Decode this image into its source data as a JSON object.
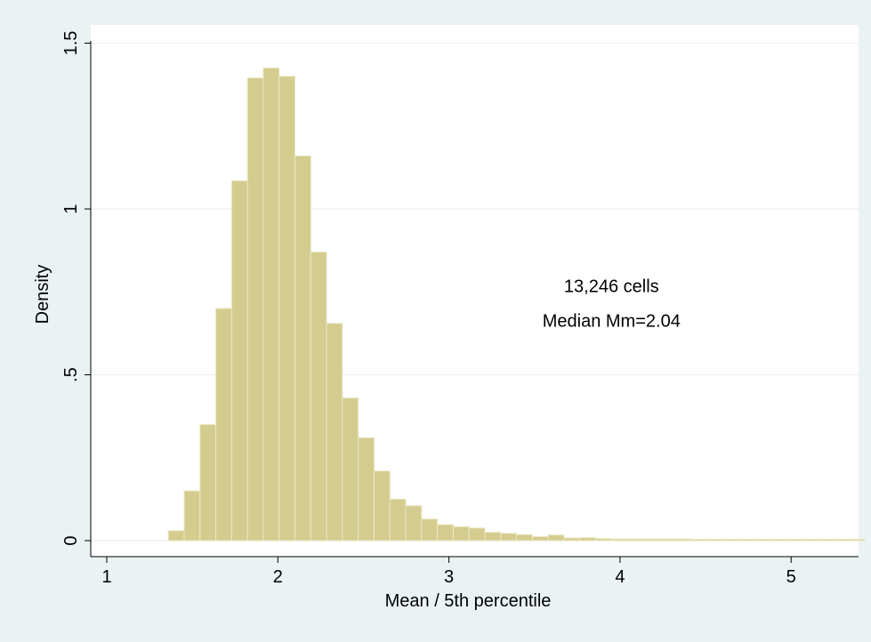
{
  "chart_data": {
    "type": "bar",
    "subtype": "histogram",
    "xlabel": "Mean / 5th percentile",
    "ylabel": "Density",
    "xlim": [
      0.95,
      5.3
    ],
    "ylim": [
      0,
      1.5
    ],
    "xticks": [
      {
        "value": 1,
        "label": "1"
      },
      {
        "value": 2,
        "label": "2"
      },
      {
        "value": 3,
        "label": "3"
      },
      {
        "value": 4,
        "label": "4"
      },
      {
        "value": 5,
        "label": "5"
      }
    ],
    "yticks": [
      {
        "value": 0,
        "label": "0"
      },
      {
        "value": 0.5,
        "label": ".5"
      },
      {
        "value": 1,
        "label": "1"
      },
      {
        "value": 1.5,
        "label": "1.5"
      }
    ],
    "grid": {
      "horizontal": true,
      "vertical": false
    },
    "bin_width": 0.0925,
    "bins_start": 1.36,
    "bin_values": [
      0.03,
      0.15,
      0.35,
      0.7,
      1.085,
      1.395,
      1.425,
      1.4,
      1.16,
      0.87,
      0.655,
      0.43,
      0.31,
      0.21,
      0.125,
      0.105,
      0.065,
      0.048,
      0.042,
      0.038,
      0.025,
      0.022,
      0.018,
      0.012,
      0.017,
      0.008,
      0.009,
      0.006,
      0.005,
      0.005,
      0.005,
      0.005,
      0.005,
      0.004,
      0.004,
      0.004,
      0.004,
      0.004,
      0.004,
      0.004,
      0.004,
      0.004,
      0.004,
      0.004
    ],
    "annotations": [
      {
        "text": "13,246 cells",
        "x": 3.95,
        "y": 0.75
      },
      {
        "text": "Median Mm=2.04",
        "x": 3.95,
        "y": 0.645
      }
    ],
    "colors": {
      "bar_fill": "#d4cc8e",
      "bar_edge": "#eae6c4",
      "background": "#eaf2f3",
      "plot_area": "#ffffff",
      "grid": "#eaf2f3"
    }
  }
}
